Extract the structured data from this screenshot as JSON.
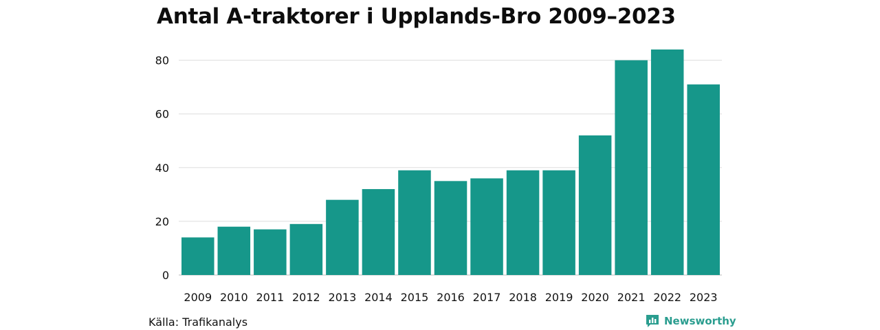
{
  "colors": {
    "bar": "#16978a",
    "grid": "#dddddd",
    "brand": "#2a9d8f"
  },
  "footer": {
    "source": "Källa: Trafikanalys",
    "brand": "Newsworthy",
    "brand_icon": "bar-chart-icon"
  },
  "chart_data": {
    "type": "bar",
    "title": "Antal A-traktorer i Upplands-Bro 2009–2023",
    "xlabel": "",
    "ylabel": "",
    "categories": [
      "2009",
      "2010",
      "2011",
      "2012",
      "2013",
      "2014",
      "2015",
      "2016",
      "2017",
      "2018",
      "2019",
      "2020",
      "2021",
      "2022",
      "2023"
    ],
    "values": [
      14,
      18,
      17,
      19,
      28,
      32,
      39,
      35,
      36,
      39,
      39,
      52,
      80,
      84,
      71
    ],
    "ylim": [
      0,
      84
    ],
    "yticks": [
      0,
      20,
      40,
      60,
      80
    ],
    "grid": true
  }
}
